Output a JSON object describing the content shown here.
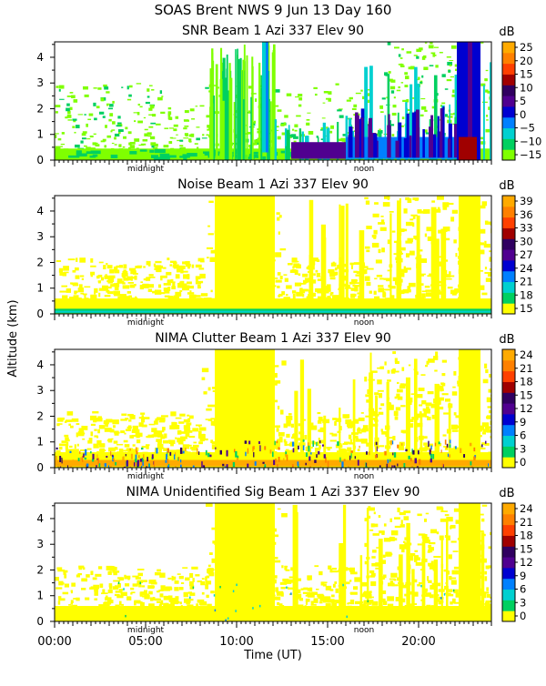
{
  "header": {
    "title": "SOAS Brent NWS    9 Jun 13 Day 160"
  },
  "axes": {
    "ylabel": "Altitude (km)",
    "xlabel": "Time (UT)",
    "x_tick_labels": [
      "00:00",
      "05:00",
      "10:00",
      "15:00",
      "20:00"
    ],
    "day_markers": [
      "midnight",
      "noon"
    ],
    "y_tick_labels": [
      "0",
      "1",
      "2",
      "3",
      "4"
    ]
  },
  "chart_data": [
    {
      "type": "heatmap",
      "title": "SNR Beam 1 Azi 337 Elev 90",
      "colorbar_unit": "dB",
      "colorbar_ticks": [
        "25",
        "20",
        "15",
        "10",
        "5",
        "0",
        "−5",
        "−10",
        "−15"
      ],
      "x_range_hours": [
        0,
        24
      ],
      "y_range_km": [
        0,
        4.6
      ]
    },
    {
      "type": "heatmap",
      "title": "Noise Beam 1 Azi 337 Elev 90",
      "colorbar_unit": "dB",
      "colorbar_ticks": [
        "39",
        "36",
        "33",
        "30",
        "27",
        "24",
        "21",
        "18",
        "15"
      ],
      "x_range_hours": [
        0,
        24
      ],
      "y_range_km": [
        0,
        4.6
      ]
    },
    {
      "type": "heatmap",
      "title": "NIMA Clutter Beam 1 Azi 337 Elev 90",
      "colorbar_unit": "dB",
      "colorbar_ticks": [
        "24",
        "21",
        "18",
        "15",
        "12",
        "9",
        "6",
        "3",
        "0"
      ],
      "x_range_hours": [
        0,
        24
      ],
      "y_range_km": [
        0,
        4.6
      ]
    },
    {
      "type": "heatmap",
      "title": "NIMA Unidentified Sig Beam 1 Azi 337 Elev 90",
      "colorbar_unit": "dB",
      "colorbar_ticks": [
        "24",
        "21",
        "18",
        "15",
        "12",
        "9",
        "6",
        "3",
        "0"
      ],
      "x_range_hours": [
        0,
        24
      ],
      "y_range_km": [
        0,
        4.6
      ]
    }
  ],
  "palette": [
    "#ffff00",
    "#7fff00",
    "#00d060",
    "#00d0d0",
    "#0080ff",
    "#0000d0",
    "#500090",
    "#300060",
    "#a00000",
    "#ff4000",
    "#ff8000",
    "#ffaa00"
  ]
}
